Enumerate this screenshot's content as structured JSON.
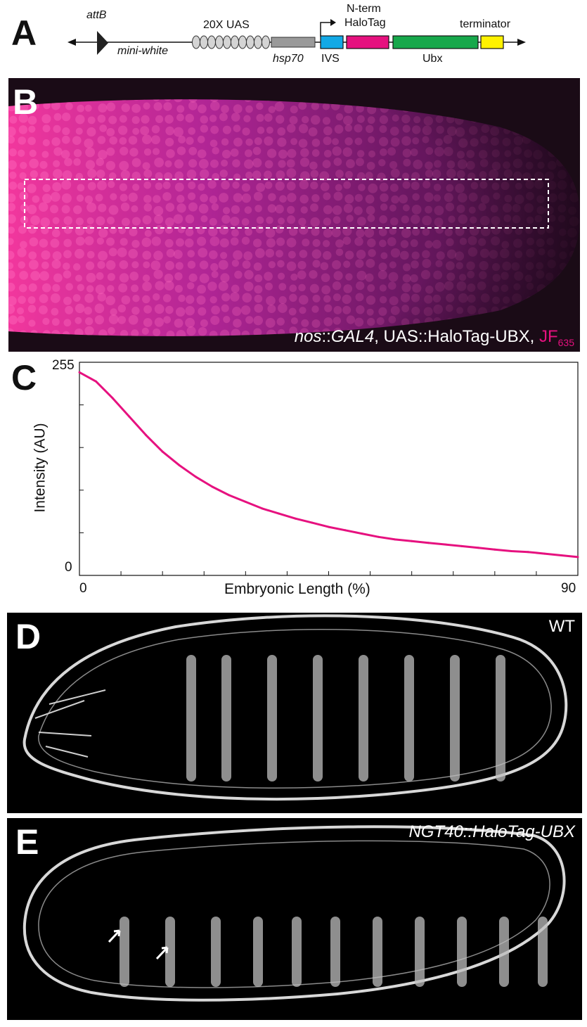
{
  "panels": {
    "a": "A",
    "b": "B",
    "c": "C",
    "d": "D",
    "e": "E"
  },
  "construct": {
    "attB": "attB",
    "mini_white": "mini-white",
    "uas": "20X UAS",
    "hsp70": "hsp70",
    "nterm_line1": "N-term",
    "nterm_line2": "HaloTag",
    "ivs": "IVS",
    "ubx": "Ubx",
    "terminator": "terminator",
    "colors": {
      "ivs": "#12a9e6",
      "halotag": "#e6117f",
      "ubx": "#17a84b",
      "terminator": "#fff200",
      "hsp70": "#9a9a9a",
      "uas": "#d0d0d0"
    }
  },
  "panel_b": {
    "caption_gene1": "nos",
    "caption_sep1": "::",
    "caption_gene2": "GAL4",
    "caption_rest": ", UAS::HaloTag-UBX, ",
    "caption_dye": "JF",
    "caption_dye_sub": "635",
    "colors": {
      "signal": "#e6117f",
      "background": "#1a0b16"
    }
  },
  "chart_data": {
    "type": "line",
    "xlabel": "Embryonic Length (%)",
    "ylabel": "Intensity (AU)",
    "xlim": [
      0,
      90
    ],
    "ylim": [
      0,
      255
    ],
    "x_tick_labels": [
      "0",
      "90"
    ],
    "y_tick_labels": [
      "0",
      "255"
    ],
    "x": [
      0,
      3,
      6,
      9,
      12,
      15,
      18,
      21,
      24,
      27,
      30,
      33,
      36,
      39,
      42,
      45,
      48,
      51,
      54,
      57,
      60,
      63,
      66,
      69,
      72,
      75,
      78,
      81,
      84,
      87,
      90
    ],
    "series": [
      {
        "values": [
          243,
          232,
          212,
          190,
          168,
          148,
          132,
          118,
          106,
          96,
          88,
          80,
          74,
          68,
          63,
          58,
          54,
          50,
          46,
          43,
          41,
          39,
          37,
          35,
          33,
          31,
          29,
          28,
          26,
          24,
          22
        ]
      }
    ],
    "color": "#e6117f",
    "grid": false
  },
  "panel_d": {
    "label": "WT"
  },
  "panel_e": {
    "label": "NGT40::HaloTag-UBX"
  }
}
